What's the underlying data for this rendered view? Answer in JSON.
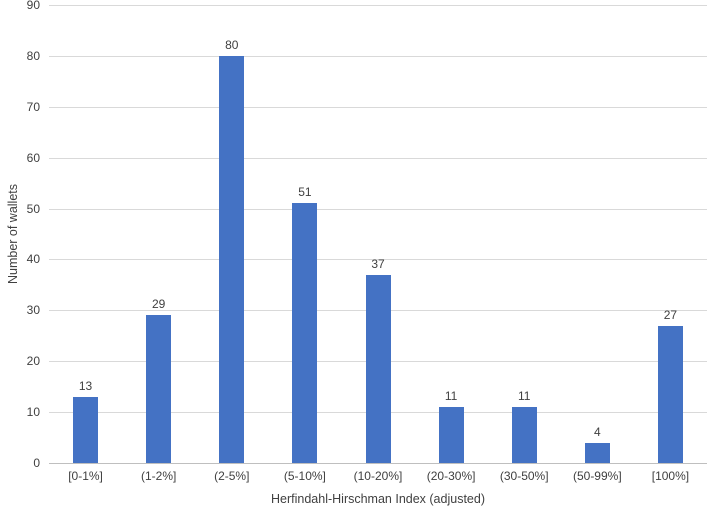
{
  "chart_data": {
    "type": "bar",
    "title": "",
    "xlabel": "Herfindahl-Hirschman Index (adjusted)",
    "ylabel": "Number of wallets",
    "categories": [
      "[0-1%]",
      "(1-2%]",
      "(2-5%]",
      "(5-10%]",
      "(10-20%]",
      "(20-30%]",
      "(30-50%]",
      "(50-99%]",
      "[100%]"
    ],
    "values": [
      13,
      29,
      80,
      51,
      37,
      11,
      11,
      4,
      27
    ],
    "data_labels": [
      "13",
      "29",
      "80",
      "51",
      "37",
      "11",
      "11",
      "4",
      "27"
    ],
    "yticks": [
      0,
      10,
      20,
      30,
      40,
      50,
      60,
      70,
      80,
      90
    ],
    "ylim": [
      0,
      90
    ],
    "grid": true,
    "legend_position": "none",
    "bar_color": "#4472C4",
    "gridline_color": "#D9D9D9",
    "axis_line_color": "#BFBFBF",
    "text_color": "#404040"
  }
}
